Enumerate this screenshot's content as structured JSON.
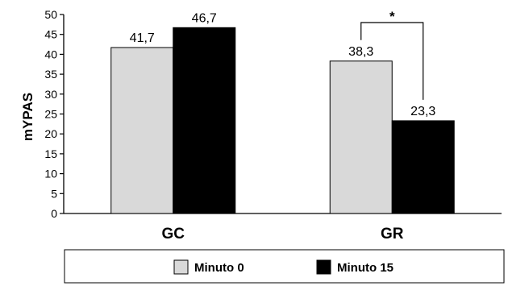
{
  "chart_data": {
    "type": "bar",
    "categories": [
      "GC",
      "GR"
    ],
    "series": [
      {
        "name": "Minuto 0",
        "values": [
          41.7,
          38.3
        ],
        "labels": [
          "41,7",
          "38,3"
        ],
        "color": "#d9d9d9"
      },
      {
        "name": "Minuto 15",
        "values": [
          46.7,
          23.3
        ],
        "labels": [
          "46,7",
          "23,3"
        ],
        "color": "#000000"
      }
    ],
    "ylabel": "mYPAS",
    "ylim": [
      0,
      50
    ],
    "yticks": [
      0,
      5,
      10,
      15,
      20,
      25,
      30,
      35,
      40,
      45,
      50
    ],
    "grid": false,
    "legend_position": "bottom",
    "annotations": [
      {
        "text": "*",
        "category": "GR",
        "type": "significance-bracket"
      }
    ]
  }
}
